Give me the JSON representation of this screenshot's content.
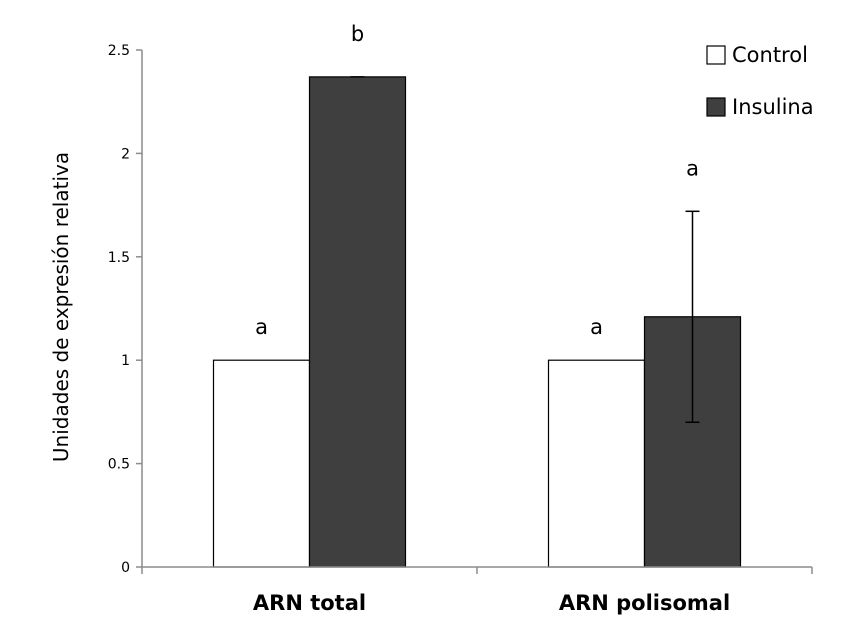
{
  "chart_data": {
    "type": "bar",
    "title": "",
    "xlabel": "",
    "ylabel": "Unidades de expresión relativa",
    "ylim": [
      0,
      2.5
    ],
    "yticks": [
      "0",
      "0.5",
      "1",
      "1.5",
      "2",
      "2.5"
    ],
    "grid": false,
    "legend_position": "top-right",
    "categories": [
      "ARN total",
      "ARN polisomal"
    ],
    "series": [
      {
        "name": "Control",
        "color": "#ffffff",
        "values": [
          1.0,
          1.0
        ],
        "errors": [
          0,
          0
        ],
        "labels": [
          "a",
          "a"
        ]
      },
      {
        "name": "Insulina",
        "color": "#3f3f3f",
        "values": [
          2.37,
          1.21
        ],
        "errors": [
          0,
          0.51
        ],
        "labels": [
          "b",
          "a"
        ]
      }
    ]
  }
}
